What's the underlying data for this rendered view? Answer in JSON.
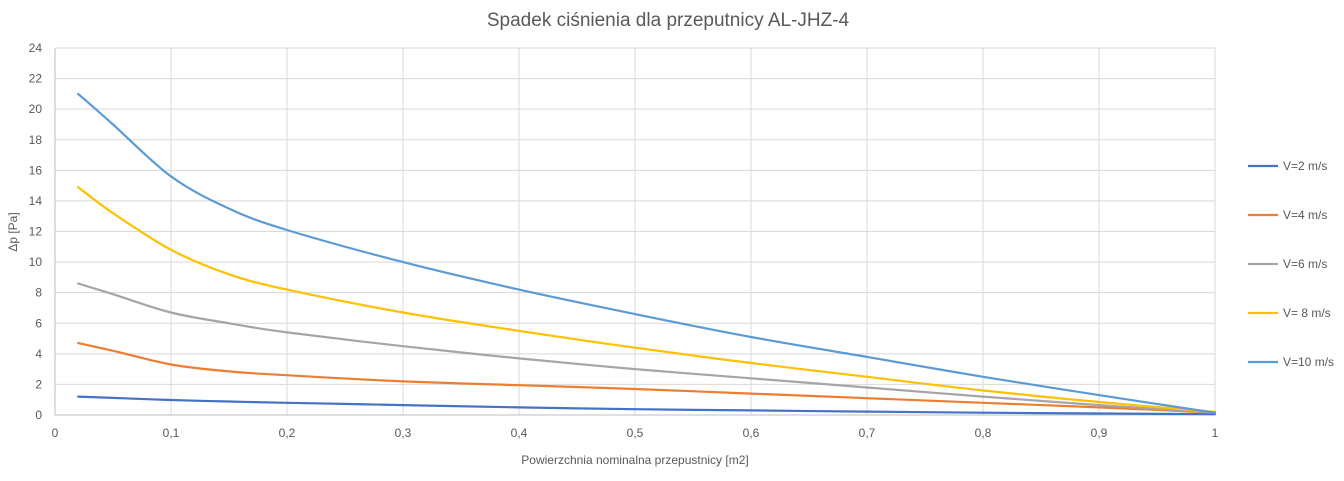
{
  "chart_data": {
    "type": "line",
    "title": "Spadek ciśnienia dla przeputnicy AL-JHZ-4",
    "xlabel": "Powierzchnia nominalna przepustnicy [m2]",
    "ylabel": "Δp [Pa]",
    "xlim": [
      0,
      1
    ],
    "ylim": [
      0,
      24
    ],
    "x_ticks": [
      "0",
      "0,1",
      "0,2",
      "0,3",
      "0,4",
      "0,5",
      "0,6",
      "0,7",
      "0,8",
      "0,9",
      "1"
    ],
    "y_ticks": [
      "0",
      "2",
      "4",
      "6",
      "8",
      "10",
      "12",
      "14",
      "16",
      "18",
      "20",
      "22",
      "24"
    ],
    "grid": true,
    "legend_position": "right",
    "series": [
      {
        "name": "V=2 m/s",
        "color": "#4472c4",
        "x": [
          0.02,
          0.05,
          0.1,
          0.15,
          0.2,
          0.3,
          0.4,
          0.5,
          0.6,
          0.7,
          0.8,
          0.9,
          1.0
        ],
        "y": [
          1.2,
          1.12,
          0.98,
          0.88,
          0.8,
          0.65,
          0.5,
          0.38,
          0.3,
          0.22,
          0.15,
          0.1,
          0.05
        ]
      },
      {
        "name": "V=4 m/s",
        "color": "#ed7d31",
        "x": [
          0.02,
          0.05,
          0.1,
          0.15,
          0.2,
          0.3,
          0.4,
          0.5,
          0.6,
          0.7,
          0.8,
          0.9,
          1.0
        ],
        "y": [
          4.7,
          4.2,
          3.3,
          2.85,
          2.6,
          2.2,
          1.95,
          1.7,
          1.4,
          1.1,
          0.8,
          0.5,
          0.15
        ]
      },
      {
        "name": "V=6 m/s",
        "color": "#a5a5a5",
        "x": [
          0.02,
          0.05,
          0.1,
          0.15,
          0.2,
          0.3,
          0.4,
          0.5,
          0.6,
          0.7,
          0.8,
          0.9,
          1.0
        ],
        "y": [
          8.6,
          7.9,
          6.7,
          6.0,
          5.4,
          4.5,
          3.7,
          3.0,
          2.4,
          1.8,
          1.2,
          0.65,
          0.15
        ]
      },
      {
        "name": "V= 8 m/s",
        "color": "#ffc000",
        "x": [
          0.02,
          0.05,
          0.1,
          0.15,
          0.2,
          0.3,
          0.4,
          0.5,
          0.6,
          0.7,
          0.8,
          0.9,
          1.0
        ],
        "y": [
          14.9,
          13.2,
          10.8,
          9.2,
          8.2,
          6.7,
          5.5,
          4.4,
          3.4,
          2.5,
          1.6,
          0.85,
          0.2
        ]
      },
      {
        "name": "V=10 m/s",
        "color": "#5b9bd5",
        "x": [
          0.02,
          0.05,
          0.1,
          0.15,
          0.2,
          0.3,
          0.4,
          0.5,
          0.6,
          0.7,
          0.8,
          0.9,
          1.0
        ],
        "y": [
          21.0,
          19.0,
          15.6,
          13.5,
          12.1,
          10.0,
          8.2,
          6.6,
          5.1,
          3.8,
          2.5,
          1.3,
          0.15
        ]
      }
    ]
  }
}
